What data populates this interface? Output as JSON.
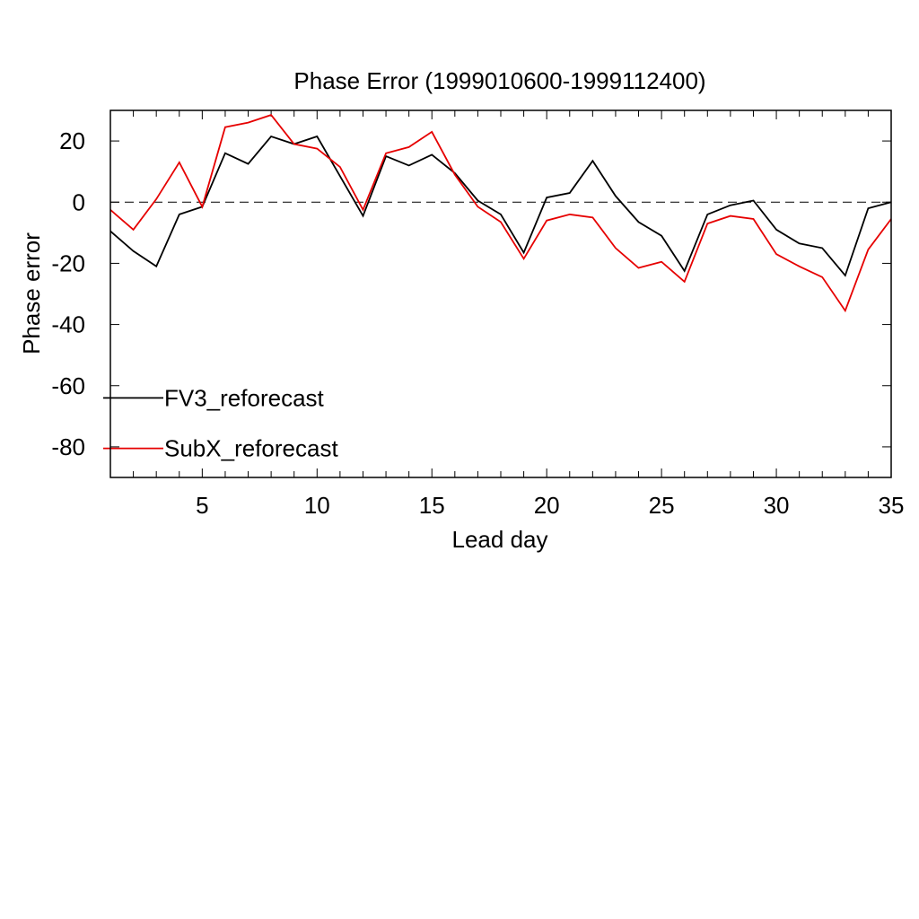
{
  "chart_data": {
    "type": "line",
    "title": "Phase Error (1999010600-1999112400)",
    "xlabel": "Lead day",
    "ylabel": "Phase error",
    "xlim": [
      1,
      35
    ],
    "ylim": [
      -90,
      30
    ],
    "xticks": [
      5,
      10,
      15,
      20,
      25,
      30,
      35
    ],
    "yticks": [
      20,
      0,
      -20,
      -40,
      -60,
      -80
    ],
    "reference_line": {
      "y": 0,
      "style": "dashed",
      "color": "#000000"
    },
    "grid": false,
    "legend_placement": "lower-left",
    "x": [
      1,
      2,
      3,
      4,
      5,
      6,
      7,
      8,
      9,
      10,
      11,
      12,
      13,
      14,
      15,
      16,
      17,
      18,
      19,
      20,
      21,
      22,
      23,
      24,
      25,
      26,
      27,
      28,
      29,
      30,
      31,
      32,
      33,
      34,
      35
    ],
    "series": [
      {
        "name": "FV3_reforecast",
        "color": "#000000",
        "values": [
          -9.5,
          -16,
          -21,
          -4,
          -1.5,
          16,
          12.5,
          21.5,
          19,
          21.5,
          8.5,
          -4.5,
          15,
          12,
          15.5,
          9.5,
          0.5,
          -4,
          -16.5,
          1.5,
          3,
          13.5,
          2,
          -6.5,
          -11,
          -22.5,
          -4,
          -1,
          0.5,
          -9,
          -13.5,
          -15,
          -24,
          -2,
          0
        ]
      },
      {
        "name": "SubX_reforecast",
        "color": "#e60000",
        "values": [
          -2.5,
          -9,
          1,
          13,
          -1.5,
          24.5,
          26,
          28.5,
          19,
          17.5,
          11.5,
          -2.5,
          16,
          18,
          23,
          9,
          -1.5,
          -6.5,
          -18.5,
          -6,
          -4,
          -5,
          -15,
          -21.5,
          -19.5,
          -26,
          -7,
          -4.5,
          -5.5,
          -17,
          -21,
          -24.5,
          -35.5,
          -15.5,
          -5.5
        ]
      }
    ]
  }
}
